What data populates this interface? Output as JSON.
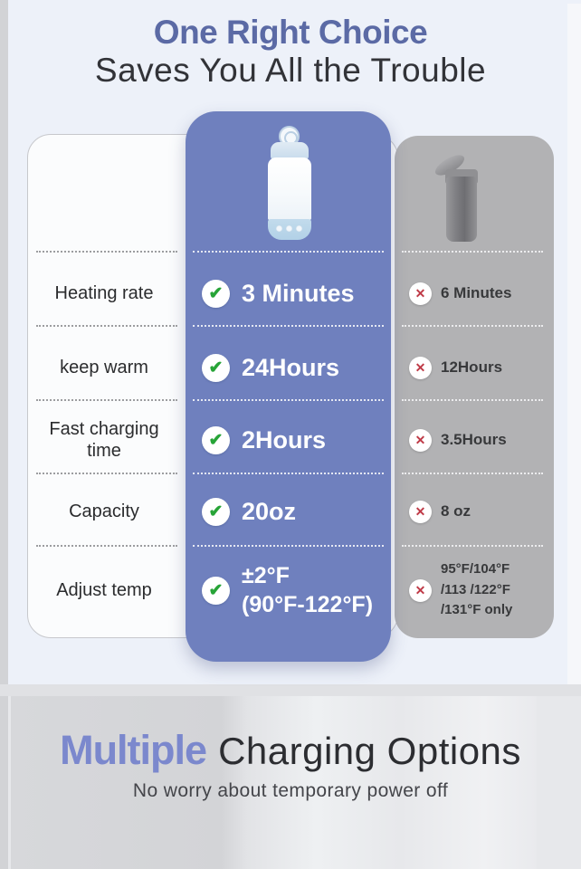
{
  "header": {
    "title": "One Right Choice",
    "subtitle": "Saves You All the Trouble"
  },
  "table": {
    "rows": [
      {
        "label": "Heating rate",
        "ours": "3 Minutes",
        "theirs": "6 Minutes"
      },
      {
        "label": "keep warm",
        "ours": "24Hours",
        "theirs": "12Hours"
      },
      {
        "label": "Fast  charging time",
        "ours": "2Hours",
        "theirs": "3.5Hours"
      },
      {
        "label": "Capacity",
        "ours": "20oz",
        "theirs": "8 oz"
      },
      {
        "label": "Adjust temp",
        "ours_l1": "±2°F",
        "ours_l2": "(90°F-122°F)",
        "theirs_l1": "95°F/104°F",
        "theirs_l2": "/113 /122°F",
        "theirs_l3": "/131°F only"
      }
    ]
  },
  "icons": {
    "check": "✔",
    "cross": "✕"
  },
  "footer": {
    "highlight": "Multiple",
    "title_rest": "Charging Options",
    "subtitle": "No worry about temporary power off"
  },
  "colors": {
    "accent_purple": "#6f80be",
    "title_blue": "#5b6aa5",
    "footer_purple": "#7b88cd",
    "competitor_gray": "#b2b2b4",
    "check_green": "#27a437",
    "cross_red": "#bf3a47",
    "background_lavender": "#edf1f9"
  }
}
